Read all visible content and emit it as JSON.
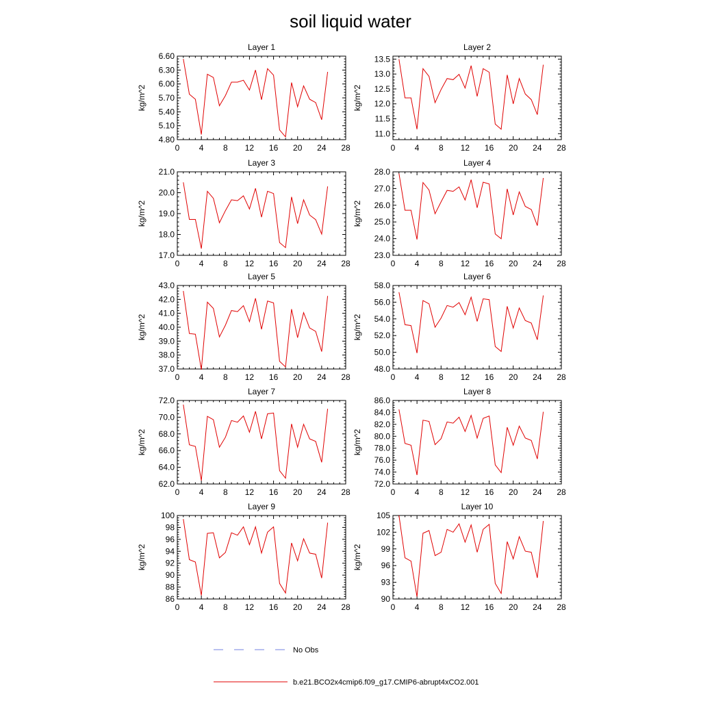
{
  "figure": {
    "title": "soil liquid water"
  },
  "legend": {
    "entries": [
      {
        "label": "No Obs",
        "color": "#7080e0",
        "dash": true
      },
      {
        "label": "b.e21.BCO2x4cmip6.f09_g17.CMIP6-abrupt4xCO2.001",
        "color": "#e00000",
        "dash": false
      }
    ]
  },
  "colors": {
    "series": "#e00000",
    "obs": "#7080e0",
    "axis": "#000000"
  },
  "chart_data": [
    {
      "type": "line",
      "title": "Layer 1",
      "xlabel": "",
      "ylabel": "kg/m^2",
      "xlim": [
        0,
        28
      ],
      "ylim": [
        4.8,
        6.6
      ],
      "xticks": [
        "0",
        "4",
        "8",
        "12",
        "16",
        "20",
        "24",
        "28"
      ],
      "yticks": [
        "4.80",
        "5.10",
        "5.40",
        "5.70",
        "6.00",
        "6.30",
        "6.60"
      ],
      "x": [
        1,
        2,
        3,
        4,
        5,
        6,
        7,
        8,
        9,
        10,
        11,
        12,
        13,
        14,
        15,
        16,
        17,
        18,
        19,
        20,
        21,
        22,
        23,
        24,
        25
      ],
      "series": [
        {
          "name": "b.e21.BCO2x4cmip6.f09_g17.CMIP6-abrupt4xCO2.001",
          "values": [
            6.54,
            5.78,
            5.67,
            4.91,
            6.21,
            6.14,
            5.53,
            5.75,
            6.04,
            6.04,
            6.08,
            5.87,
            6.3,
            5.66,
            6.33,
            6.19,
            5.01,
            4.86,
            6.03,
            5.51,
            5.96,
            5.67,
            5.6,
            5.23,
            6.26
          ]
        }
      ]
    },
    {
      "type": "line",
      "title": "Layer 2",
      "xlabel": "",
      "ylabel": "kg/m^2",
      "xlim": [
        0,
        28
      ],
      "ylim": [
        10.8,
        13.6
      ],
      "xticks": [
        "0",
        "4",
        "8",
        "12",
        "16",
        "20",
        "24",
        "28"
      ],
      "yticks": [
        "11.0",
        "11.5",
        "12.0",
        "12.5",
        "13.0",
        "13.5"
      ],
      "x": [
        1,
        2,
        3,
        4,
        5,
        6,
        7,
        8,
        9,
        10,
        11,
        12,
        13,
        14,
        15,
        16,
        17,
        18,
        19,
        20,
        21,
        22,
        23,
        24,
        25
      ],
      "series": [
        {
          "name": "b.e21.BCO2x4cmip6.f09_g17.CMIP6-abrupt4xCO2.001",
          "values": [
            13.5,
            12.2,
            12.2,
            11.15,
            13.18,
            12.92,
            12.04,
            12.48,
            12.85,
            12.81,
            12.99,
            12.53,
            13.28,
            12.25,
            13.18,
            13.06,
            11.32,
            11.15,
            12.97,
            12.0,
            12.85,
            12.33,
            12.14,
            11.64,
            13.31
          ]
        }
      ]
    },
    {
      "type": "line",
      "title": "Layer 3",
      "xlabel": "",
      "ylabel": "kg/m^2",
      "xlim": [
        0,
        28
      ],
      "ylim": [
        17.0,
        21.0
      ],
      "xticks": [
        "0",
        "4",
        "8",
        "12",
        "16",
        "20",
        "24",
        "28"
      ],
      "yticks": [
        "17.0",
        "18.0",
        "19.0",
        "20.0",
        "21.0"
      ],
      "x": [
        1,
        2,
        3,
        4,
        5,
        6,
        7,
        8,
        9,
        10,
        11,
        12,
        13,
        14,
        15,
        16,
        17,
        18,
        19,
        20,
        21,
        22,
        23,
        24,
        25
      ],
      "series": [
        {
          "name": "b.e21.BCO2x4cmip6.f09_g17.CMIP6-abrupt4xCO2.001",
          "values": [
            20.5,
            18.72,
            18.72,
            17.32,
            20.07,
            19.73,
            18.56,
            19.14,
            19.66,
            19.62,
            19.85,
            19.22,
            20.21,
            18.83,
            20.07,
            19.96,
            17.61,
            17.37,
            19.8,
            18.52,
            19.66,
            18.93,
            18.71,
            18.02,
            20.3
          ]
        }
      ]
    },
    {
      "type": "line",
      "title": "Layer 4",
      "xlabel": "",
      "ylabel": "kg/m^2",
      "xlim": [
        0,
        28
      ],
      "ylim": [
        23.0,
        28.0
      ],
      "xticks": [
        "0",
        "4",
        "8",
        "12",
        "16",
        "20",
        "24",
        "28"
      ],
      "yticks": [
        "23.0",
        "24.0",
        "25.0",
        "26.0",
        "27.0",
        "28.0"
      ],
      "x": [
        1,
        2,
        3,
        4,
        5,
        6,
        7,
        8,
        9,
        10,
        11,
        12,
        13,
        14,
        15,
        16,
        17,
        18,
        19,
        20,
        21,
        22,
        23,
        24,
        25
      ],
      "series": [
        {
          "name": "b.e21.BCO2x4cmip6.f09_g17.CMIP6-abrupt4xCO2.001",
          "values": [
            27.9,
            25.7,
            25.7,
            23.95,
            27.36,
            26.91,
            25.49,
            26.2,
            26.89,
            26.83,
            27.1,
            26.31,
            27.53,
            25.85,
            27.38,
            27.27,
            24.28,
            23.99,
            26.98,
            25.42,
            26.8,
            25.93,
            25.74,
            24.78,
            27.63
          ]
        }
      ]
    },
    {
      "type": "line",
      "title": "Layer 5",
      "xlabel": "",
      "ylabel": "kg/m^2",
      "xlim": [
        0,
        28
      ],
      "ylim": [
        37.0,
        43.0
      ],
      "xticks": [
        "0",
        "4",
        "8",
        "12",
        "16",
        "20",
        "24",
        "28"
      ],
      "yticks": [
        "37.0",
        "38.0",
        "39.0",
        "40.0",
        "41.0",
        "42.0",
        "43.0"
      ],
      "x": [
        1,
        2,
        3,
        4,
        5,
        6,
        7,
        8,
        9,
        10,
        11,
        12,
        13,
        14,
        15,
        16,
        17,
        18,
        19,
        20,
        21,
        22,
        23,
        24,
        25
      ],
      "series": [
        {
          "name": "b.e21.BCO2x4cmip6.f09_g17.CMIP6-abrupt4xCO2.001",
          "values": [
            42.6,
            39.55,
            39.5,
            36.95,
            41.8,
            41.35,
            39.3,
            40.15,
            41.2,
            41.12,
            41.55,
            40.4,
            42.08,
            39.85,
            41.88,
            41.75,
            37.55,
            37.15,
            41.3,
            39.25,
            41.05,
            39.95,
            39.7,
            38.25,
            42.25
          ]
        }
      ]
    },
    {
      "type": "line",
      "title": "Layer 6",
      "xlabel": "",
      "ylabel": "kg/m^2",
      "xlim": [
        0,
        28
      ],
      "ylim": [
        48.0,
        58.0
      ],
      "xticks": [
        "0",
        "4",
        "8",
        "12",
        "16",
        "20",
        "24",
        "28"
      ],
      "yticks": [
        "48.0",
        "50.0",
        "52.0",
        "54.0",
        "56.0",
        "58.0"
      ],
      "x": [
        1,
        2,
        3,
        4,
        5,
        6,
        7,
        8,
        9,
        10,
        11,
        12,
        13,
        14,
        15,
        16,
        17,
        18,
        19,
        20,
        21,
        22,
        23,
        24,
        25
      ],
      "series": [
        {
          "name": "b.e21.BCO2x4cmip6.f09_g17.CMIP6-abrupt4xCO2.001",
          "values": [
            57.2,
            53.3,
            53.2,
            49.9,
            56.2,
            55.8,
            53.0,
            54.1,
            55.6,
            55.4,
            55.95,
            54.5,
            56.6,
            53.7,
            56.4,
            56.3,
            50.7,
            50.1,
            55.5,
            52.9,
            55.3,
            53.8,
            53.5,
            51.5,
            56.8
          ]
        }
      ]
    },
    {
      "type": "line",
      "title": "Layer 7",
      "xlabel": "",
      "ylabel": "kg/m^2",
      "xlim": [
        0,
        28
      ],
      "ylim": [
        62.0,
        72.0
      ],
      "xticks": [
        "0",
        "4",
        "8",
        "12",
        "16",
        "20",
        "24",
        "28"
      ],
      "yticks": [
        "62.0",
        "64.0",
        "66.0",
        "68.0",
        "70.0",
        "72.0"
      ],
      "x": [
        1,
        2,
        3,
        4,
        5,
        6,
        7,
        8,
        9,
        10,
        11,
        12,
        13,
        14,
        15,
        16,
        17,
        18,
        19,
        20,
        21,
        22,
        23,
        24,
        25
      ],
      "series": [
        {
          "name": "b.e21.BCO2x4cmip6.f09_g17.CMIP6-abrupt4xCO2.001",
          "values": [
            71.5,
            66.7,
            66.5,
            62.4,
            70.1,
            69.7,
            66.4,
            67.6,
            69.6,
            69.4,
            70.15,
            68.2,
            70.7,
            67.4,
            70.4,
            70.5,
            63.6,
            62.7,
            69.2,
            66.4,
            69.15,
            67.4,
            67.1,
            64.6,
            71.0
          ]
        }
      ]
    },
    {
      "type": "line",
      "title": "Layer 8",
      "xlabel": "",
      "ylabel": "kg/m^2",
      "xlim": [
        0,
        28
      ],
      "ylim": [
        72.0,
        86.0
      ],
      "xticks": [
        "0",
        "4",
        "8",
        "12",
        "16",
        "20",
        "24",
        "28"
      ],
      "yticks": [
        "72.0",
        "74.0",
        "76.0",
        "78.0",
        "80.0",
        "82.0",
        "84.0",
        "86.0"
      ],
      "x": [
        1,
        2,
        3,
        4,
        5,
        6,
        7,
        8,
        9,
        10,
        11,
        12,
        13,
        14,
        15,
        16,
        17,
        18,
        19,
        20,
        21,
        22,
        23,
        24,
        25
      ],
      "series": [
        {
          "name": "b.e21.BCO2x4cmip6.f09_g17.CMIP6-abrupt4xCO2.001",
          "values": [
            84.5,
            78.8,
            78.5,
            73.5,
            82.7,
            82.5,
            78.6,
            79.6,
            82.4,
            82.2,
            83.2,
            80.8,
            83.5,
            79.7,
            83.0,
            83.4,
            75.2,
            73.9,
            81.5,
            78.5,
            81.7,
            79.7,
            79.3,
            76.2,
            84.1
          ]
        }
      ]
    },
    {
      "type": "line",
      "title": "Layer 9",
      "xlabel": "",
      "ylabel": "kg/m^2",
      "xlim": [
        0,
        28
      ],
      "ylim": [
        86,
        100
      ],
      "xticks": [
        "0",
        "4",
        "8",
        "12",
        "16",
        "20",
        "24",
        "28"
      ],
      "yticks": [
        "86",
        "88",
        "90",
        "92",
        "94",
        "96",
        "98",
        "100"
      ],
      "x": [
        1,
        2,
        3,
        4,
        5,
        6,
        7,
        8,
        9,
        10,
        11,
        12,
        13,
        14,
        15,
        16,
        17,
        18,
        19,
        20,
        21,
        22,
        23,
        24,
        25
      ],
      "series": [
        {
          "name": "b.e21.BCO2x4cmip6.f09_g17.CMIP6-abrupt4xCO2.001",
          "values": [
            99.4,
            92.6,
            92.2,
            86.6,
            97.0,
            97.1,
            92.9,
            93.8,
            97.1,
            96.7,
            98.1,
            95.1,
            98.1,
            93.7,
            97.2,
            98.1,
            88.6,
            87.0,
            95.4,
            92.4,
            96.1,
            93.7,
            93.5,
            89.5,
            98.8
          ]
        }
      ]
    },
    {
      "type": "line",
      "title": "Layer 10",
      "xlabel": "",
      "ylabel": "kg/m^2",
      "xlim": [
        0,
        28
      ],
      "ylim": [
        90,
        105
      ],
      "xticks": [
        "0",
        "4",
        "8",
        "12",
        "16",
        "20",
        "24",
        "28"
      ],
      "yticks": [
        "90",
        "93",
        "96",
        "99",
        "102",
        "105"
      ],
      "x": [
        1,
        2,
        3,
        4,
        5,
        6,
        7,
        8,
        9,
        10,
        11,
        12,
        13,
        14,
        15,
        16,
        17,
        18,
        19,
        20,
        21,
        22,
        23,
        24,
        25
      ],
      "series": [
        {
          "name": "b.e21.BCO2x4cmip6.f09_g17.CMIP6-abrupt4xCO2.001",
          "values": [
            105.0,
            97.4,
            96.8,
            90.4,
            101.8,
            102.3,
            97.8,
            98.4,
            102.5,
            102.0,
            103.5,
            100.2,
            103.3,
            98.4,
            102.5,
            103.4,
            92.8,
            91.0,
            100.3,
            97.2,
            101.2,
            98.6,
            98.4,
            93.8,
            104.0
          ]
        }
      ]
    }
  ]
}
